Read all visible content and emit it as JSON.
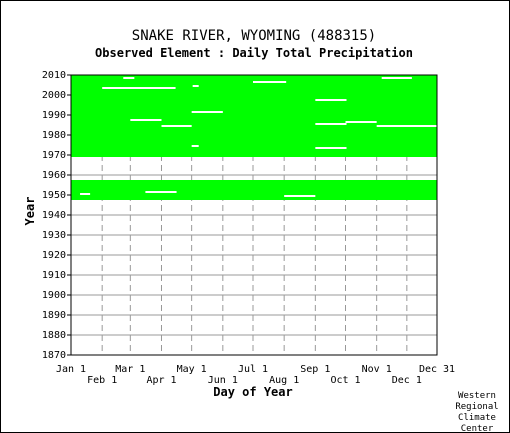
{
  "chart_data": {
    "type": "heatmap",
    "title": "SNAKE RIVER, WYOMING   (488315)",
    "subtitle": "Observed Element : Daily Total Precipitation",
    "xlabel": "Day of Year",
    "ylabel": "Year",
    "ylim": [
      1870,
      2010
    ],
    "y_ticks": [
      1870,
      1880,
      1890,
      1900,
      1910,
      1920,
      1930,
      1940,
      1950,
      1960,
      1970,
      1980,
      1990,
      2000,
      2010
    ],
    "xlim": [
      1,
      365
    ],
    "x_ticks_top": [
      {
        "label": "Jan 1",
        "day": 1
      },
      {
        "label": "Mar 1",
        "day": 60
      },
      {
        "label": "May 1",
        "day": 121
      },
      {
        "label": "Jul 1",
        "day": 182
      },
      {
        "label": "Sep 1",
        "day": 244
      },
      {
        "label": "Nov 1",
        "day": 305
      },
      {
        "label": "Dec 31",
        "day": 365
      }
    ],
    "x_ticks_bottom": [
      {
        "label": "Feb 1",
        "day": 32
      },
      {
        "label": "Apr 1",
        "day": 91
      },
      {
        "label": "Jun 1",
        "day": 152
      },
      {
        "label": "Aug 1",
        "day": 213
      },
      {
        "label": "Oct 1",
        "day": 274
      },
      {
        "label": "Dec 1",
        "day": 335
      }
    ],
    "data_color": "#00ff00",
    "grid": true,
    "observed_periods": [
      {
        "year_start": 1947.5,
        "year_end": 1957.5
      },
      {
        "year_start": 1969,
        "year_end": 2010
      }
    ],
    "missing_segments": [
      {
        "year": 2003,
        "day_start": 32,
        "day_end": 105
      },
      {
        "year": 2004,
        "day_start": 122,
        "day_end": 128
      },
      {
        "year": 2008,
        "day_start": 53,
        "day_end": 64
      },
      {
        "year": 2008,
        "day_start": 310,
        "day_end": 340
      },
      {
        "year": 2006,
        "day_start": 182,
        "day_end": 215
      },
      {
        "year": 1997,
        "day_start": 244,
        "day_end": 275
      },
      {
        "year": 1991,
        "day_start": 121,
        "day_end": 152
      },
      {
        "year": 1987,
        "day_start": 60,
        "day_end": 91
      },
      {
        "year": 1984,
        "day_start": 91,
        "day_end": 121
      },
      {
        "year": 1985,
        "day_start": 244,
        "day_end": 275
      },
      {
        "year": 1986,
        "day_start": 274,
        "day_end": 305
      },
      {
        "year": 1984,
        "day_start": 305,
        "day_end": 365
      },
      {
        "year": 1973,
        "day_start": 244,
        "day_end": 275
      },
      {
        "year": 1974,
        "day_start": 121,
        "day_end": 128
      },
      {
        "year": 1951,
        "day_start": 75,
        "day_end": 106
      },
      {
        "year": 1949,
        "day_start": 213,
        "day_end": 244
      },
      {
        "year": 1950,
        "day_start": 10,
        "day_end": 20
      }
    ]
  },
  "credit": {
    "line1": "Western",
    "line2": "Regional",
    "line3": "Climate",
    "line4": "Center"
  }
}
